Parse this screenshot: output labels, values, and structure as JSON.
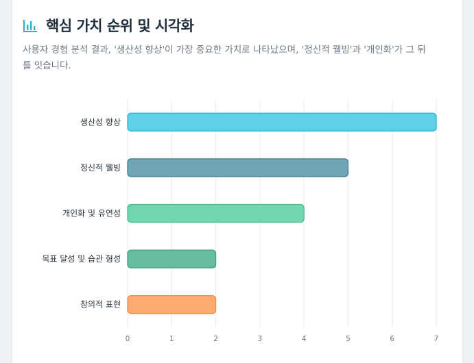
{
  "header": {
    "title": "핵심 가치 순위 및 시각화",
    "icon": "bar-chart-icon",
    "accent": "#27b6c9"
  },
  "description": "사용자 경험 분석 결과, '생산성 향상'이 가장 중요한 가치로 나타났으며, '정신적 웰빙'과 '개인화'가 그 뒤를 잇습니다.",
  "chart_data": {
    "type": "bar",
    "orientation": "horizontal",
    "categories": [
      "생산성 향상",
      "정신적 웰빙",
      "개인화 및 유연성",
      "목표 달성 및 습관 형성",
      "창의적 표현"
    ],
    "values": [
      7,
      5,
      4,
      2,
      2
    ],
    "colors": [
      {
        "fill": "#5fd0e8",
        "stroke": "#27b6c9"
      },
      {
        "fill": "#6fa6b5",
        "stroke": "#3f7e91"
      },
      {
        "fill": "#71d6b0",
        "stroke": "#3fc08f"
      },
      {
        "fill": "#67be9f",
        "stroke": "#3a9f7b"
      },
      {
        "fill": "#fdaa73",
        "stroke": "#f28a47"
      }
    ],
    "xlim": [
      0,
      7
    ],
    "xticks": [
      0,
      1,
      2,
      3,
      4,
      5,
      6,
      7
    ],
    "grid": true,
    "title": "",
    "xlabel": "",
    "ylabel": ""
  }
}
